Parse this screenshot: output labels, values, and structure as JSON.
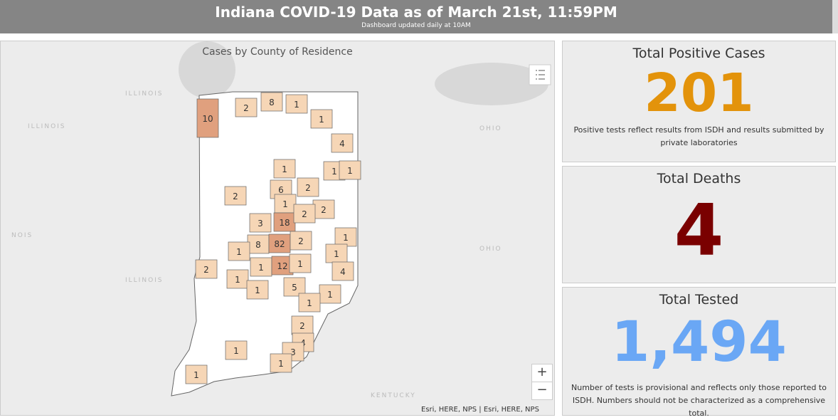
{
  "header": {
    "title": "Indiana COVID-19 Data as of March 21st, 11:59PM",
    "subtitle": "Dashboard updated daily at 10AM"
  },
  "map": {
    "title": "Cases by County of Residence",
    "basemap_labels": [
      "ILLINOIS",
      "ILLINOIS",
      "NOIS",
      "ILLINOIS",
      "OHIO",
      "OHIO",
      "KENTUCKY"
    ],
    "attribution": "Esri, HERE, NPS | Esri, HERE, NPS",
    "zoom_in": "+",
    "zoom_out": "−",
    "county_counts": [
      10,
      2,
      8,
      1,
      1,
      4,
      1,
      1,
      1,
      6,
      2,
      2,
      1,
      2,
      3,
      18,
      2,
      1,
      8,
      82,
      2,
      1,
      1,
      1,
      12,
      1,
      2,
      4,
      1,
      1,
      5,
      1,
      1,
      2,
      4,
      3,
      1,
      1,
      1
    ]
  },
  "indicators": [
    {
      "title": "Total Positive Cases",
      "value": 201,
      "note": "Positive tests reflect results from ISDH and results submitted by private laboratories"
    },
    {
      "title": "Total Deaths",
      "value": 4
    },
    {
      "title": "Total Tested",
      "value": "1,494",
      "note": "Number of tests is provisional and reflects only those reported to ISDH. Numbers should not be characterized as a comprehensive total."
    }
  ]
}
